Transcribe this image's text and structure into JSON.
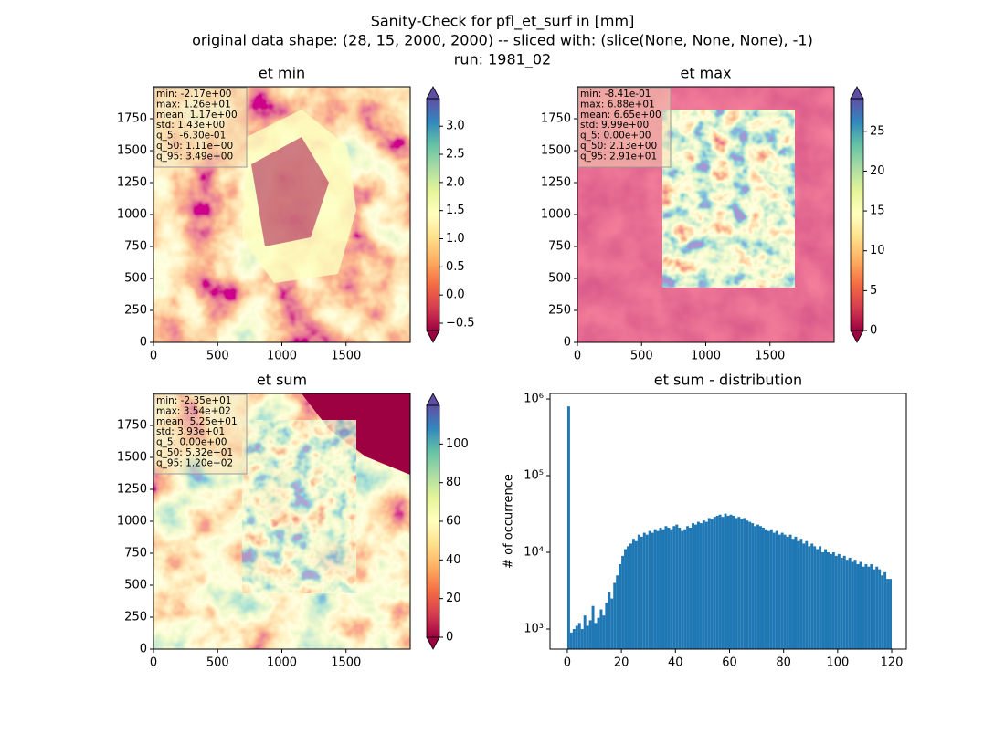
{
  "title": [
    "Sanity-Check for pfl_et_surf in [mm]",
    "original data shape: (28, 15, 2000, 2000) -- sliced with: (slice(None, None, None), -1)",
    "run: 1981_02"
  ],
  "chart_data": [
    {
      "type": "heatmap",
      "title": "et min",
      "xlim": [
        0,
        2000
      ],
      "ylim": [
        0,
        2000
      ],
      "xticks": [
        0,
        500,
        1000,
        1500
      ],
      "yticks": [
        0,
        250,
        500,
        750,
        1000,
        1250,
        1500,
        1750
      ],
      "colorbar": {
        "cmap": "Spectral",
        "extend": "both",
        "lim": [
          -0.63,
          3.49
        ],
        "ticks": [
          {
            "value": -0.5,
            "label": "−0.5"
          },
          {
            "value": 0,
            "label": "0.0"
          },
          {
            "value": 0.5,
            "label": "0.5"
          },
          {
            "value": 1,
            "label": "1.0"
          },
          {
            "value": 1.5,
            "label": "1.5"
          },
          {
            "value": 2,
            "label": "2.0"
          },
          {
            "value": 2.5,
            "label": "2.5"
          },
          {
            "value": 3,
            "label": "3.0"
          }
        ]
      },
      "stats": [
        "min: -2.17e+00",
        "max: 1.26e+01",
        "mean: 1.17e+00",
        "std: 1.43e+00",
        "q_5: -6.30e-01",
        "q_50: 1.11e+00",
        "q_95: 3.49e+00"
      ]
    },
    {
      "type": "heatmap",
      "title": "et max",
      "xlim": [
        0,
        2000
      ],
      "ylim": [
        0,
        2000
      ],
      "xticks": [
        0,
        500,
        1000,
        1500
      ],
      "yticks": [
        0,
        250,
        500,
        750,
        1000,
        1250,
        1500,
        1750
      ],
      "colorbar": {
        "cmap": "Spectral",
        "extend": "both",
        "lim": [
          0,
          29.1
        ],
        "ticks": [
          0,
          5,
          10,
          15,
          20,
          25
        ]
      },
      "stats": [
        "min: -8.41e-01",
        "max: 6.88e+01",
        "mean: 6.65e+00",
        "std: 9.99e+00",
        "q_5: 0.00e+00",
        "q_50: 2.13e+00",
        "q_95: 2.91e+01"
      ]
    },
    {
      "type": "heatmap",
      "title": "et sum",
      "xlim": [
        0,
        2000
      ],
      "ylim": [
        0,
        2000
      ],
      "xticks": [
        0,
        500,
        1000,
        1500
      ],
      "yticks": [
        0,
        250,
        500,
        750,
        1000,
        1250,
        1500,
        1750
      ],
      "colorbar": {
        "cmap": "Spectral",
        "extend": "both",
        "lim": [
          0,
          120
        ],
        "ticks": [
          0,
          20,
          40,
          60,
          80,
          100
        ]
      },
      "stats": [
        "min: -2.35e+01",
        "max: 3.54e+02",
        "mean: 5.25e+01",
        "std: 3.93e+01",
        "q_5: 0.00e+00",
        "q_50: 5.32e+01",
        "q_95: 1.20e+02"
      ]
    },
    {
      "type": "histogram",
      "title": "et sum - distribution",
      "ylabel": "# of occurrence",
      "color": "#1f77b4",
      "log_y": true,
      "xlim": [
        -6.4,
        125.4
      ],
      "ylim": [
        547,
        1180000
      ],
      "xticks": [
        0,
        20,
        40,
        60,
        80,
        100,
        120
      ],
      "yticks": [
        {
          "value": 1000,
          "label": "10³"
        },
        {
          "value": 10000,
          "label": "10⁴"
        },
        {
          "value": 100000,
          "label": "10⁵"
        },
        {
          "value": 1000000,
          "label": "10⁶"
        }
      ],
      "bins": [
        0,
        1,
        2,
        3,
        4,
        5,
        6,
        7,
        8,
        9,
        10,
        11,
        12,
        13,
        14,
        15,
        16,
        17,
        18,
        19,
        20,
        21,
        22,
        23,
        24,
        25,
        26,
        27,
        28,
        29,
        30,
        31,
        32,
        33,
        34,
        35,
        36,
        37,
        38,
        39,
        40,
        41,
        42,
        43,
        44,
        45,
        46,
        47,
        48,
        49,
        50,
        51,
        52,
        53,
        54,
        55,
        56,
        57,
        58,
        59,
        60,
        61,
        62,
        63,
        64,
        65,
        66,
        67,
        68,
        69,
        70,
        71,
        72,
        73,
        74,
        75,
        76,
        77,
        78,
        79,
        80,
        81,
        82,
        83,
        84,
        85,
        86,
        87,
        88,
        89,
        90,
        91,
        92,
        93,
        94,
        95,
        96,
        97,
        98,
        99,
        100,
        101,
        102,
        103,
        104,
        105,
        106,
        107,
        108,
        109,
        110,
        111,
        112,
        113,
        114,
        115,
        116,
        117,
        118,
        119,
        120
      ],
      "counts": [
        800000,
        900,
        1000,
        1100,
        1200,
        1000,
        1500,
        1100,
        1300,
        2000,
        1200,
        1400,
        1800,
        1500,
        2200,
        3000,
        2500,
        4000,
        5000,
        7000,
        9000,
        11000,
        12000,
        13000,
        15000,
        14000,
        17000,
        16000,
        18000,
        17000,
        19000,
        18000,
        20000,
        19000,
        21000,
        20000,
        22000,
        21000,
        20000,
        22000,
        23000,
        21000,
        19000,
        20000,
        22000,
        21000,
        24000,
        23000,
        25000,
        24000,
        26000,
        25000,
        28000,
        27000,
        29000,
        30000,
        31000,
        29000,
        32000,
        30000,
        31000,
        30000,
        28000,
        29000,
        27000,
        28000,
        26000,
        25000,
        24000,
        22000,
        23000,
        22000,
        21000,
        20000,
        19000,
        20000,
        18000,
        19000,
        17000,
        18000,
        17000,
        16000,
        17000,
        15000,
        16000,
        14000,
        15000,
        13000,
        14000,
        12000,
        13000,
        12000,
        11000,
        12000,
        10000,
        11000,
        10000,
        9500,
        10000,
        9000,
        9500,
        8500,
        9000,
        8000,
        8500,
        7500,
        8000,
        7000,
        7500,
        6500,
        7000,
        6500,
        7000,
        6000,
        6500,
        6000,
        5000,
        5500,
        4500,
        4500
      ]
    }
  ]
}
